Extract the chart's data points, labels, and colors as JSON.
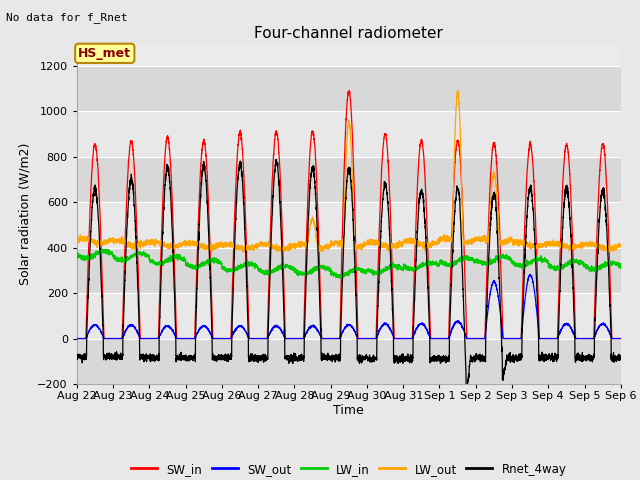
{
  "title": "Four-channel radiometer",
  "xlabel": "Time",
  "ylabel": "Solar radiation (W/m2)",
  "top_label": "No data for f_Rnet",
  "station_label": "HS_met",
  "ylim": [
    -200,
    1300
  ],
  "yticks": [
    -200,
    0,
    200,
    400,
    600,
    800,
    1000,
    1200
  ],
  "x_tick_labels": [
    "Aug 22",
    "Aug 23",
    "Aug 24",
    "Aug 25",
    "Aug 26",
    "Aug 27",
    "Aug 28",
    "Aug 29",
    "Aug 30",
    "Aug 31",
    "Sep 1",
    "Sep 2",
    "Sep 3",
    "Sep 4",
    "Sep 5",
    "Sep 6"
  ],
  "n_days": 15,
  "colors": {
    "SW_in": "#ff0000",
    "SW_out": "#0000ff",
    "LW_in": "#00cc00",
    "LW_out": "#ffa500",
    "Rnet_4way": "#000000"
  },
  "legend_entries": [
    "SW_in",
    "SW_out",
    "LW_in",
    "LW_out",
    "Rnet_4way"
  ],
  "fig_bg_color": "#e8e8e8",
  "plot_bg_color": "#e8e8e8",
  "inner_bg_color": "#e0e0e0"
}
